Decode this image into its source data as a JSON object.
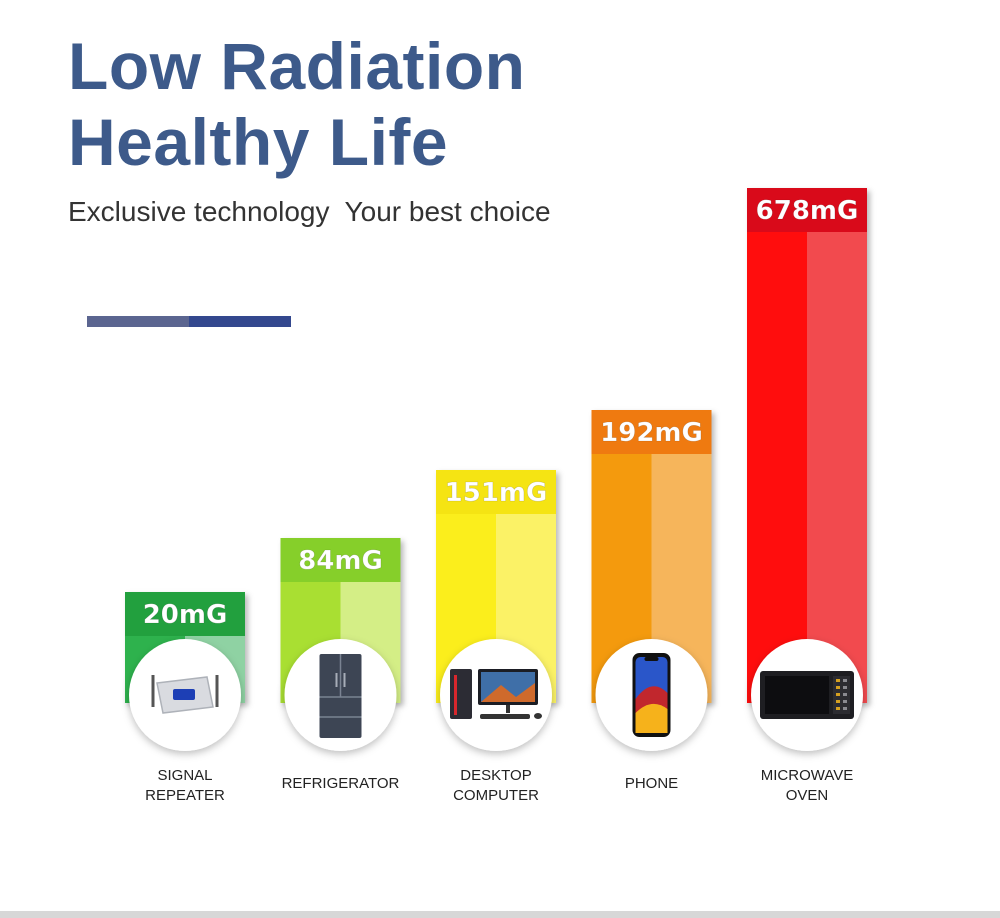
{
  "header": {
    "title_line1": "Low Radiation",
    "title_line2": "Healthy Life",
    "subtitle": "Exclusive technology  Your best choice"
  },
  "chart_data": {
    "type": "bar",
    "unit": "mG",
    "categories": [
      "SIGNAL REPEATER",
      "REFRIGERATOR",
      "DESKTOP COMPUTER",
      "PHONE",
      "MICROWAVE OVEN"
    ],
    "category_lines": [
      [
        "SIGNAL",
        "REPEATER"
      ],
      [
        "REFRIGERATOR"
      ],
      [
        "DESKTOP",
        "COMPUTER"
      ],
      [
        "PHONE"
      ],
      [
        "MICROWAVE",
        "OVEN"
      ]
    ],
    "values": [
      20,
      84,
      151,
      192,
      678
    ],
    "value_labels": [
      "20mG",
      "84mG",
      "151mG",
      "192mG",
      "678mG"
    ],
    "colors": [
      {
        "header": "#22a03e",
        "dark": "#2eb24e",
        "light": "#8fd2a3"
      },
      {
        "header": "#86cf2a",
        "dark": "#a9df30",
        "light": "#d4ee86"
      },
      {
        "header": "#f5e413",
        "dark": "#fbee1a",
        "light": "#fbf266"
      },
      {
        "header": "#ef7a10",
        "dark": "#f49a0b",
        "light": "#f6b55b"
      },
      {
        "header": "#d90a1a",
        "dark": "#ff0d0d",
        "light": "#f24a4e"
      }
    ],
    "icons": [
      "signal-repeater-icon",
      "refrigerator-icon",
      "desktop-computer-icon",
      "phone-icon",
      "microwave-oven-icon"
    ],
    "title": "",
    "xlabel": "",
    "ylabel": ""
  }
}
